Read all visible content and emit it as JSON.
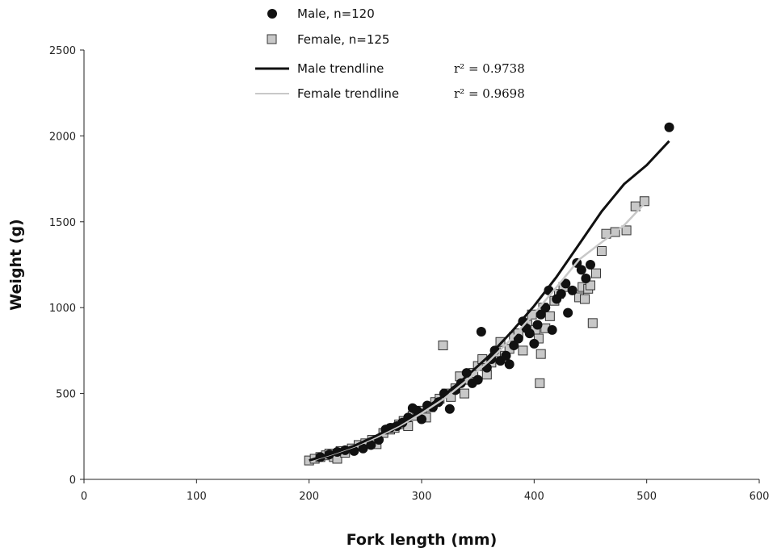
{
  "chart_data": {
    "type": "scatter",
    "xlabel": "Fork length (mm)",
    "ylabel": "Weight (g)",
    "xlim": [
      0,
      600
    ],
    "ylim": [
      0,
      2500
    ],
    "xticks": [
      "0",
      "100",
      "200",
      "300",
      "400",
      "500",
      "600"
    ],
    "yticks": [
      "0",
      "500",
      "1000",
      "1500",
      "2000",
      "2500"
    ],
    "grid": false,
    "legend_position": "top-center",
    "series": [
      {
        "name": "Male, n=120",
        "marker": "circle",
        "color": "#111111",
        "points": [
          [
            210,
            130
          ],
          [
            218,
            145
          ],
          [
            225,
            160
          ],
          [
            232,
            170
          ],
          [
            240,
            165
          ],
          [
            248,
            180
          ],
          [
            255,
            200
          ],
          [
            262,
            230
          ],
          [
            268,
            290
          ],
          [
            272,
            300
          ],
          [
            278,
            310
          ],
          [
            283,
            330
          ],
          [
            288,
            360
          ],
          [
            292,
            415
          ],
          [
            296,
            400
          ],
          [
            300,
            350
          ],
          [
            305,
            430
          ],
          [
            310,
            420
          ],
          [
            315,
            450
          ],
          [
            320,
            500
          ],
          [
            325,
            410
          ],
          [
            330,
            520
          ],
          [
            335,
            560
          ],
          [
            340,
            620
          ],
          [
            345,
            560
          ],
          [
            350,
            580
          ],
          [
            353,
            860
          ],
          [
            358,
            650
          ],
          [
            362,
            700
          ],
          [
            365,
            750
          ],
          [
            370,
            690
          ],
          [
            375,
            720
          ],
          [
            378,
            670
          ],
          [
            382,
            780
          ],
          [
            386,
            820
          ],
          [
            390,
            920
          ],
          [
            393,
            880
          ],
          [
            396,
            850
          ],
          [
            400,
            790
          ],
          [
            403,
            900
          ],
          [
            406,
            960
          ],
          [
            410,
            1000
          ],
          [
            413,
            1100
          ],
          [
            416,
            870
          ],
          [
            420,
            1050
          ],
          [
            424,
            1080
          ],
          [
            428,
            1140
          ],
          [
            430,
            970
          ],
          [
            434,
            1100
          ],
          [
            438,
            1260
          ],
          [
            442,
            1220
          ],
          [
            446,
            1170
          ],
          [
            450,
            1250
          ],
          [
            520,
            2050
          ]
        ]
      },
      {
        "name": "Female, n=125",
        "marker": "square",
        "color": "#c8c8c8",
        "points": [
          [
            200,
            110
          ],
          [
            205,
            120
          ],
          [
            210,
            130
          ],
          [
            215,
            140
          ],
          [
            218,
            150
          ],
          [
            222,
            130
          ],
          [
            225,
            120
          ],
          [
            228,
            165
          ],
          [
            232,
            155
          ],
          [
            238,
            180
          ],
          [
            244,
            200
          ],
          [
            250,
            210
          ],
          [
            256,
            230
          ],
          [
            260,
            205
          ],
          [
            266,
            270
          ],
          [
            272,
            290
          ],
          [
            276,
            300
          ],
          [
            280,
            320
          ],
          [
            284,
            340
          ],
          [
            288,
            310
          ],
          [
            292,
            370
          ],
          [
            296,
            390
          ],
          [
            300,
            400
          ],
          [
            304,
            360
          ],
          [
            308,
            420
          ],
          [
            312,
            450
          ],
          [
            316,
            470
          ],
          [
            319,
            780
          ],
          [
            322,
            500
          ],
          [
            326,
            480
          ],
          [
            330,
            530
          ],
          [
            334,
            600
          ],
          [
            338,
            500
          ],
          [
            342,
            580
          ],
          [
            346,
            620
          ],
          [
            350,
            660
          ],
          [
            354,
            700
          ],
          [
            358,
            610
          ],
          [
            362,
            680
          ],
          [
            366,
            740
          ],
          [
            370,
            800
          ],
          [
            374,
            720
          ],
          [
            378,
            760
          ],
          [
            382,
            830
          ],
          [
            386,
            850
          ],
          [
            390,
            750
          ],
          [
            394,
            900
          ],
          [
            398,
            960
          ],
          [
            401,
            870
          ],
          [
            404,
            820
          ],
          [
            405,
            560
          ],
          [
            406,
            730
          ],
          [
            408,
            1000
          ],
          [
            410,
            880
          ],
          [
            414,
            950
          ],
          [
            418,
            1040
          ],
          [
            422,
            1080
          ],
          [
            426,
            1120
          ],
          [
            440,
            1060
          ],
          [
            443,
            1120
          ],
          [
            445,
            1050
          ],
          [
            448,
            1110
          ],
          [
            450,
            1130
          ],
          [
            452,
            910
          ],
          [
            455,
            1200
          ],
          [
            460,
            1330
          ],
          [
            464,
            1430
          ],
          [
            472,
            1440
          ],
          [
            482,
            1450
          ],
          [
            490,
            1590
          ],
          [
            498,
            1620
          ]
        ]
      },
      {
        "name": "Male trendline",
        "type": "line",
        "color": "#111111",
        "r_squared": "r² = 0.9738",
        "points": [
          [
            200,
            110
          ],
          [
            220,
            150
          ],
          [
            240,
            195
          ],
          [
            260,
            255
          ],
          [
            280,
            320
          ],
          [
            300,
            400
          ],
          [
            320,
            490
          ],
          [
            340,
            600
          ],
          [
            360,
            720
          ],
          [
            380,
            860
          ],
          [
            400,
            1010
          ],
          [
            420,
            1180
          ],
          [
            440,
            1370
          ],
          [
            460,
            1560
          ],
          [
            480,
            1720
          ],
          [
            500,
            1830
          ],
          [
            520,
            1970
          ]
        ]
      },
      {
        "name": "Female trendline",
        "type": "line",
        "color": "#c8c8c8",
        "r_squared": "r² = 0.9698",
        "points": [
          [
            200,
            105
          ],
          [
            220,
            145
          ],
          [
            240,
            190
          ],
          [
            260,
            245
          ],
          [
            280,
            310
          ],
          [
            300,
            385
          ],
          [
            320,
            470
          ],
          [
            340,
            575
          ],
          [
            360,
            690
          ],
          [
            380,
            820
          ],
          [
            400,
            965
          ],
          [
            420,
            1120
          ],
          [
            440,
            1280
          ],
          [
            460,
            1380
          ],
          [
            480,
            1480
          ],
          [
            500,
            1620
          ]
        ]
      }
    ]
  }
}
